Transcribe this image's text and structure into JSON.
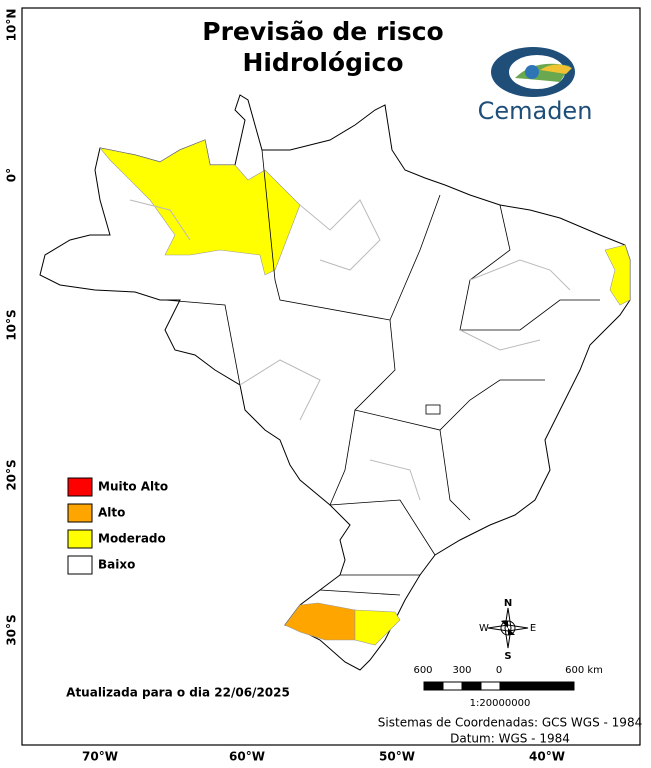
{
  "title": [
    "Previsão de risco",
    "Hidrológico"
  ],
  "logo": "Cemaden",
  "legend": [
    {
      "label": "Muito Alto",
      "color": "#ff0000"
    },
    {
      "label": "Alto",
      "color": "#ffa500"
    },
    {
      "label": "Moderado",
      "color": "#ffff00"
    },
    {
      "label": "Baixo",
      "color": "#ffffff"
    }
  ],
  "lat_labels": [
    "10°N",
    "0°",
    "10°S",
    "20°S",
    "30°S"
  ],
  "lon_labels": [
    "70°W",
    "60°W",
    "50°W",
    "40°W"
  ],
  "compass": {
    "n": "N",
    "s": "S",
    "e": "E",
    "w": "W"
  },
  "scale": {
    "labels": [
      "600",
      "300",
      "0",
      "600 km"
    ],
    "ratio": "1:20000000"
  },
  "updated": "Atualizada para o dia 22/06/2025",
  "coords": [
    "Sistemas de Coordenadas: GCS WGS - 1984",
    "Datum: WGS - 1984"
  ]
}
